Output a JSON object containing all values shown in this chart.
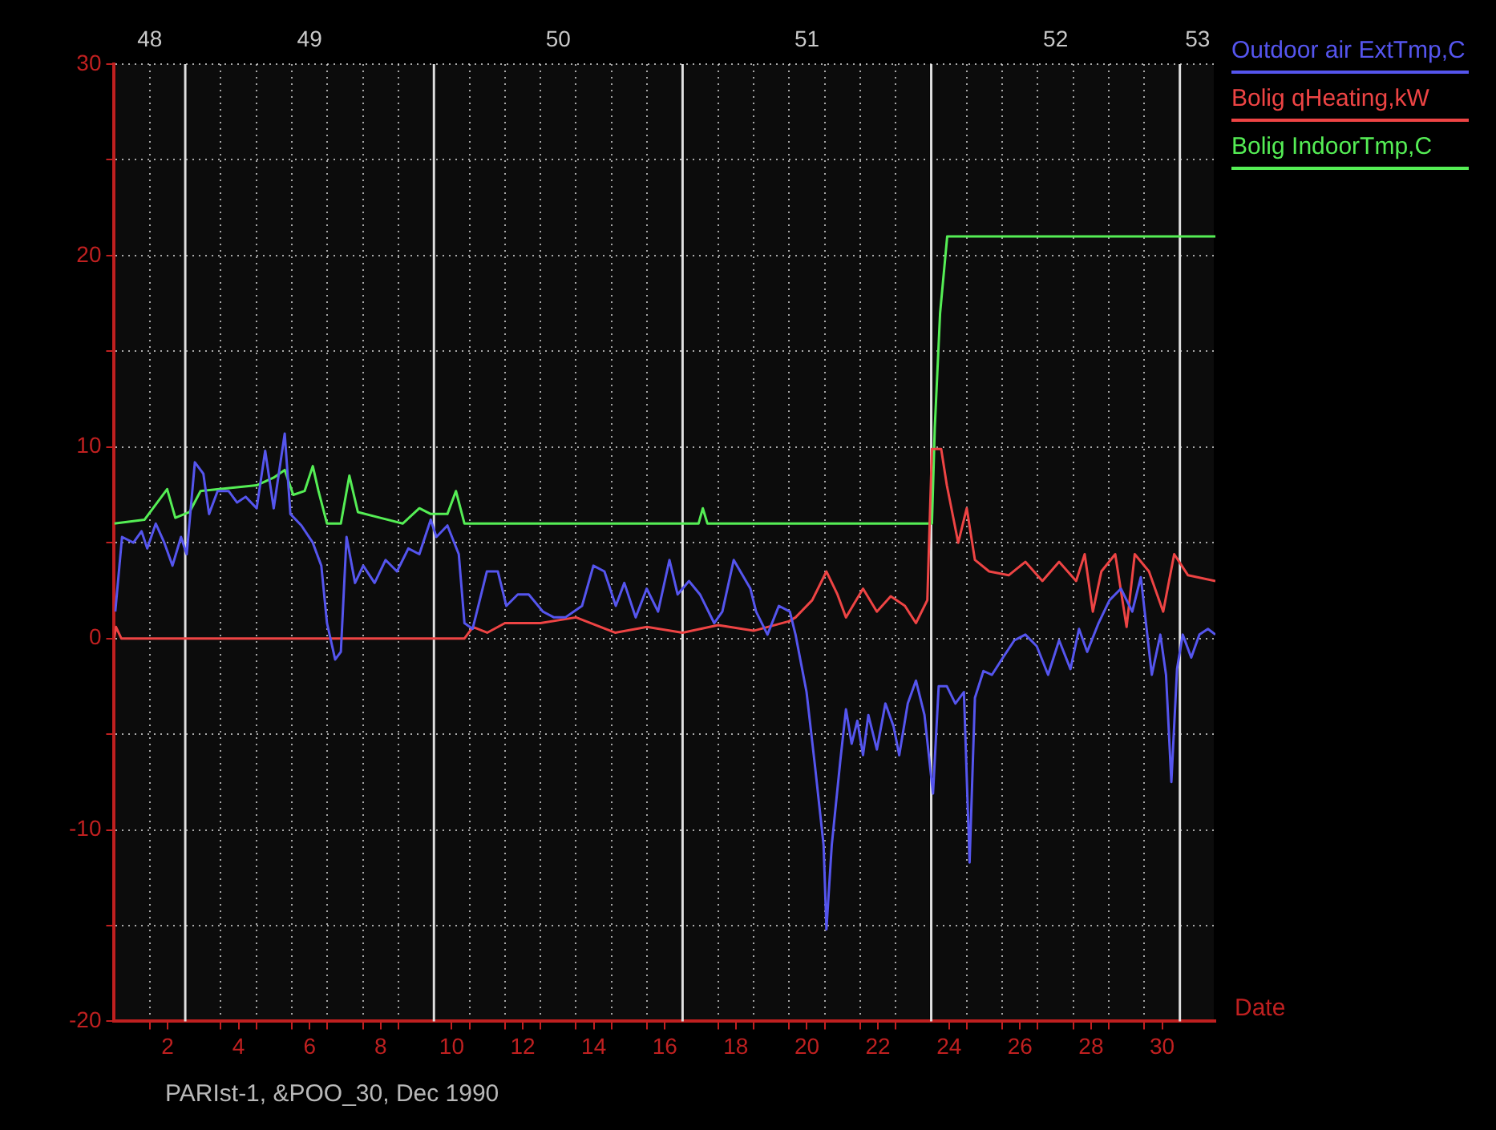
{
  "chart_data": {
    "type": "line",
    "xlabel": "Date",
    "annotations": [
      "PARIst-1, &POO_30, Dec 1990"
    ],
    "xlim": [
      0.5,
      31.5
    ],
    "xticks": [
      {
        "value": 1.5,
        "label": null
      },
      {
        "value": 2,
        "label": "2"
      },
      {
        "value": 3.5,
        "label": null
      },
      {
        "value": 4,
        "label": "4"
      },
      {
        "value": 4.5,
        "label": null
      },
      {
        "value": 5.5,
        "label": null
      },
      {
        "value": 6,
        "label": "6"
      },
      {
        "value": 6.5,
        "label": null
      },
      {
        "value": 7.5,
        "label": null
      },
      {
        "value": 8,
        "label": "8"
      },
      {
        "value": 8.5,
        "label": null
      },
      {
        "value": 10,
        "label": "10"
      },
      {
        "value": 10.5,
        "label": null
      },
      {
        "value": 11.5,
        "label": null
      },
      {
        "value": 12,
        "label": "12"
      },
      {
        "value": 12.5,
        "label": null
      },
      {
        "value": 13.5,
        "label": null
      },
      {
        "value": 14,
        "label": "14"
      },
      {
        "value": 14.5,
        "label": null
      },
      {
        "value": 15.5,
        "label": null
      },
      {
        "value": 16,
        "label": "16"
      },
      {
        "value": 17.5,
        "label": null
      },
      {
        "value": 18,
        "label": "18"
      },
      {
        "value": 18.5,
        "label": null
      },
      {
        "value": 19.5,
        "label": null
      },
      {
        "value": 20,
        "label": "20"
      },
      {
        "value": 20.5,
        "label": null
      },
      {
        "value": 21.5,
        "label": null
      },
      {
        "value": 22,
        "label": "22"
      },
      {
        "value": 22.5,
        "label": null
      },
      {
        "value": 24,
        "label": "24"
      },
      {
        "value": 24.5,
        "label": null
      },
      {
        "value": 25.5,
        "label": null
      },
      {
        "value": 26,
        "label": "26"
      },
      {
        "value": 26.5,
        "label": null
      },
      {
        "value": 27.5,
        "label": null
      },
      {
        "value": 28,
        "label": "28"
      },
      {
        "value": 28.5,
        "label": null
      },
      {
        "value": 29.5,
        "label": null
      },
      {
        "value": 30,
        "label": "30"
      }
    ],
    "bands": [
      {
        "axis": "x",
        "from": 0.5,
        "to": 2.5,
        "label": "48",
        "color": "#0c0c0c"
      },
      {
        "axis": "x",
        "from": 2.5,
        "to": 9.5,
        "label": "49",
        "color": "#0c0c0c"
      },
      {
        "axis": "x",
        "from": 9.5,
        "to": 16.5,
        "label": "50",
        "color": "#0c0c0c"
      },
      {
        "axis": "x",
        "from": 16.5,
        "to": 23.5,
        "label": "51",
        "color": "#0c0c0c"
      },
      {
        "axis": "x",
        "from": 23.5,
        "to": 30.5,
        "label": "52",
        "color": "#0c0c0c"
      },
      {
        "axis": "x",
        "from": 30.5,
        "to": 31.5,
        "label": "53",
        "color": "#0c0c0c"
      }
    ],
    "ylim": [
      -20,
      30
    ],
    "yticks": [
      -20,
      {
        "value": -15,
        "label": null
      },
      -10,
      {
        "value": -5,
        "label": null
      },
      0,
      {
        "value": 5,
        "label": null
      },
      10,
      {
        "value": 15,
        "label": null
      },
      20,
      {
        "value": 25,
        "label": null
      },
      30
    ],
    "grid": true,
    "legend": "top right",
    "marker": "none",
    "line_style": "solid",
    "ref_lines": [
      {
        "axis": "x",
        "value": 2.5,
        "color": "#e0e0e0"
      },
      {
        "axis": "x",
        "value": 9.5,
        "color": "#e0e0e0"
      },
      {
        "axis": "x",
        "value": 16.5,
        "color": "#e0e0e0"
      },
      {
        "axis": "x",
        "value": 23.5,
        "color": "#e0e0e0"
      },
      {
        "axis": "x",
        "value": 30.5,
        "color": "#e0e0e0"
      }
    ],
    "series": [
      {
        "name": "Outdoor air ExtTmp,C",
        "color": "#5555ee",
        "x": [
          0.53,
          0.72,
          1.04,
          1.27,
          1.43,
          1.67,
          1.91,
          2.14,
          2.38,
          2.54,
          2.77,
          3.01,
          3.17,
          3.41,
          3.72,
          3.96,
          4.2,
          4.51,
          4.75,
          4.99,
          5.3,
          5.46,
          5.77,
          6.09,
          6.33,
          6.49,
          6.72,
          6.88,
          7.04,
          7.28,
          7.51,
          7.83,
          8.14,
          8.46,
          8.78,
          9.09,
          9.41,
          9.57,
          9.88,
          10.2,
          10.36,
          10.59,
          10.99,
          11.3,
          11.54,
          11.86,
          12.17,
          12.57,
          12.88,
          13.2,
          13.67,
          13.99,
          14.3,
          14.62,
          14.86,
          15.18,
          15.49,
          15.81,
          16.13,
          16.36,
          16.68,
          16.99,
          17.39,
          17.62,
          17.94,
          18.41,
          18.57,
          18.89,
          19.21,
          19.52,
          19.68,
          19.99,
          20.23,
          20.47,
          20.55,
          20.7,
          20.94,
          21.1,
          21.26,
          21.42,
          21.58,
          21.73,
          21.97,
          22.21,
          22.44,
          22.6,
          22.84,
          23.07,
          23.31,
          23.55,
          23.71,
          23.94,
          24.18,
          24.42,
          24.58,
          24.73,
          24.97,
          25.21,
          25.52,
          25.84,
          26.15,
          26.47,
          26.79,
          27.1,
          27.42,
          27.66,
          27.89,
          28.21,
          28.52,
          28.84,
          29.16,
          29.4,
          29.71,
          29.95,
          30.11,
          30.26,
          30.42,
          30.58,
          30.82,
          31.05,
          31.29,
          31.5
        ],
        "values": [
          1.4,
          5.3,
          5.0,
          5.6,
          4.7,
          6.0,
          5.0,
          3.8,
          5.3,
          4.4,
          9.2,
          8.6,
          6.5,
          7.7,
          7.7,
          7.1,
          7.4,
          6.8,
          9.8,
          6.8,
          10.7,
          6.5,
          5.9,
          5.0,
          3.8,
          0.8,
          -1.1,
          -0.7,
          5.3,
          2.9,
          3.8,
          2.9,
          4.1,
          3.5,
          4.7,
          4.4,
          6.2,
          5.3,
          5.9,
          4.4,
          0.8,
          0.5,
          3.5,
          3.5,
          1.7,
          2.3,
          2.3,
          1.4,
          1.1,
          1.1,
          1.7,
          3.8,
          3.5,
          1.7,
          2.9,
          1.1,
          2.6,
          1.4,
          4.1,
          2.3,
          3.0,
          2.3,
          0.8,
          1.4,
          4.1,
          2.6,
          1.4,
          0.2,
          1.7,
          1.4,
          0.2,
          -2.8,
          -6.7,
          -10.8,
          -15.2,
          -10.8,
          -6.4,
          -3.7,
          -5.5,
          -4.3,
          -6.1,
          -4.0,
          -5.8,
          -3.4,
          -4.6,
          -6.1,
          -3.4,
          -2.2,
          -4.0,
          -8.1,
          -2.5,
          -2.5,
          -3.4,
          -2.8,
          -11.7,
          -3.1,
          -1.7,
          -1.9,
          -1.0,
          -0.1,
          0.2,
          -0.4,
          -1.9,
          -0.1,
          -1.6,
          0.5,
          -0.7,
          0.8,
          2.0,
          2.6,
          1.4,
          3.2,
          -1.9,
          0.2,
          -1.9,
          -7.5,
          -1.6,
          0.2,
          -1.0,
          0.2,
          0.5,
          0.2
        ]
      },
      {
        "name": "Bolig qHeating,kW",
        "color": "#ee4444",
        "x": [
          0.5,
          0.55,
          0.7,
          10.36,
          10.6,
          11.0,
          11.5,
          12.5,
          13.5,
          14.6,
          15.5,
          16.5,
          17.5,
          18.5,
          19.5,
          19.68,
          20.15,
          20.55,
          20.86,
          21.1,
          21.58,
          21.97,
          22.36,
          22.76,
          23.07,
          23.39,
          23.52,
          23.78,
          23.94,
          24.26,
          24.5,
          24.73,
          25.13,
          25.68,
          26.15,
          26.63,
          27.1,
          27.58,
          27.82,
          28.05,
          28.29,
          28.68,
          29.0,
          29.23,
          29.63,
          30.03,
          30.34,
          30.73,
          31.5
        ],
        "values": [
          0.0,
          0.6,
          0.0,
          0.0,
          0.6,
          0.3,
          0.8,
          0.8,
          1.1,
          0.3,
          0.6,
          0.3,
          0.7,
          0.4,
          0.9,
          1.1,
          2.0,
          3.5,
          2.3,
          1.1,
          2.6,
          1.4,
          2.2,
          1.7,
          0.8,
          2.0,
          9.9,
          9.9,
          8.0,
          5.0,
          6.8,
          4.1,
          3.5,
          3.3,
          4.0,
          3.0,
          4.0,
          3.0,
          4.4,
          1.4,
          3.5,
          4.4,
          0.6,
          4.4,
          3.5,
          1.4,
          4.4,
          3.3,
          3.0
        ]
      },
      {
        "name": "Bolig IndoorTmp,C",
        "color": "#55ee55",
        "x": [
          0.5,
          1.35,
          1.99,
          2.22,
          2.62,
          2.93,
          4.51,
          4.99,
          5.3,
          5.54,
          5.86,
          6.09,
          6.25,
          6.49,
          6.88,
          7.12,
          7.36,
          7.99,
          8.62,
          9.09,
          9.41,
          9.88,
          10.12,
          10.36,
          16.95,
          17.07,
          17.2,
          23.52,
          23.6,
          23.75,
          23.95,
          31.5
        ],
        "values": [
          6.0,
          6.2,
          7.8,
          6.3,
          6.6,
          7.7,
          8.0,
          8.4,
          8.8,
          7.5,
          7.7,
          9.0,
          7.7,
          6.0,
          6.0,
          8.5,
          6.6,
          6.3,
          6.0,
          6.8,
          6.5,
          6.5,
          7.7,
          6.0,
          6.0,
          6.8,
          6.0,
          6.0,
          11.0,
          17.0,
          21.0,
          21.0
        ]
      }
    ]
  }
}
